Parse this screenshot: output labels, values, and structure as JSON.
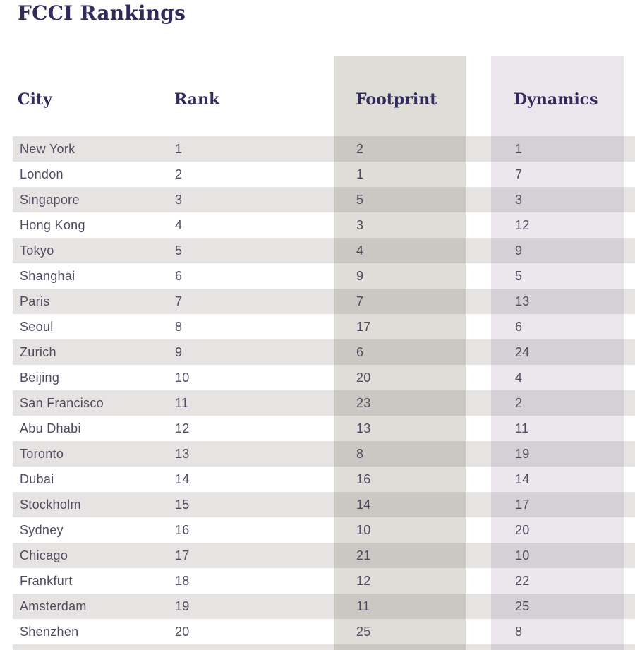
{
  "title": "FCCI Rankings",
  "table": {
    "columns": [
      "City",
      "Rank",
      "Footprint",
      "Dynamics"
    ],
    "rows": [
      {
        "city": "New York",
        "rank": "1",
        "footprint": "2",
        "dynamics": "1"
      },
      {
        "city": "London",
        "rank": "2",
        "footprint": "1",
        "dynamics": "7"
      },
      {
        "city": "Singapore",
        "rank": "3",
        "footprint": "5",
        "dynamics": "3"
      },
      {
        "city": "Hong Kong",
        "rank": "4",
        "footprint": "3",
        "dynamics": "12"
      },
      {
        "city": "Tokyo",
        "rank": "5",
        "footprint": "4",
        "dynamics": "9"
      },
      {
        "city": "Shanghai",
        "rank": "6",
        "footprint": "9",
        "dynamics": "5"
      },
      {
        "city": "Paris",
        "rank": "7",
        "footprint": "7",
        "dynamics": "13"
      },
      {
        "city": "Seoul",
        "rank": "8",
        "footprint": "17",
        "dynamics": "6"
      },
      {
        "city": "Zurich",
        "rank": "9",
        "footprint": "6",
        "dynamics": "24"
      },
      {
        "city": "Beijing",
        "rank": "10",
        "footprint": "20",
        "dynamics": "4"
      },
      {
        "city": "San Francisco",
        "rank": "11",
        "footprint": "23",
        "dynamics": "2"
      },
      {
        "city": "Abu Dhabi",
        "rank": "12",
        "footprint": "13",
        "dynamics": "11"
      },
      {
        "city": "Toronto",
        "rank": "13",
        "footprint": "8",
        "dynamics": "19"
      },
      {
        "city": "Dubai",
        "rank": "14",
        "footprint": "16",
        "dynamics": "14"
      },
      {
        "city": "Stockholm",
        "rank": "15",
        "footprint": "14",
        "dynamics": "17"
      },
      {
        "city": "Sydney",
        "rank": "16",
        "footprint": "10",
        "dynamics": "20"
      },
      {
        "city": "Chicago",
        "rank": "17",
        "footprint": "21",
        "dynamics": "10"
      },
      {
        "city": "Frankfurt",
        "rank": "18",
        "footprint": "12",
        "dynamics": "22"
      },
      {
        "city": "Amsterdam",
        "rank": "19",
        "footprint": "11",
        "dynamics": "25"
      },
      {
        "city": "Shenzhen",
        "rank": "20",
        "footprint": "25",
        "dynamics": "8"
      }
    ]
  },
  "colors": {
    "title_text": "#322b5c",
    "cell_text": "#514b60",
    "stripe": "#e5e4e2",
    "fp_light": "#dfddd8",
    "fp_dark": "#c9c8c3",
    "dyn_light": "#ece7ed",
    "dyn_dark": "#d5cfd6",
    "page_bg": "#ffffff"
  }
}
